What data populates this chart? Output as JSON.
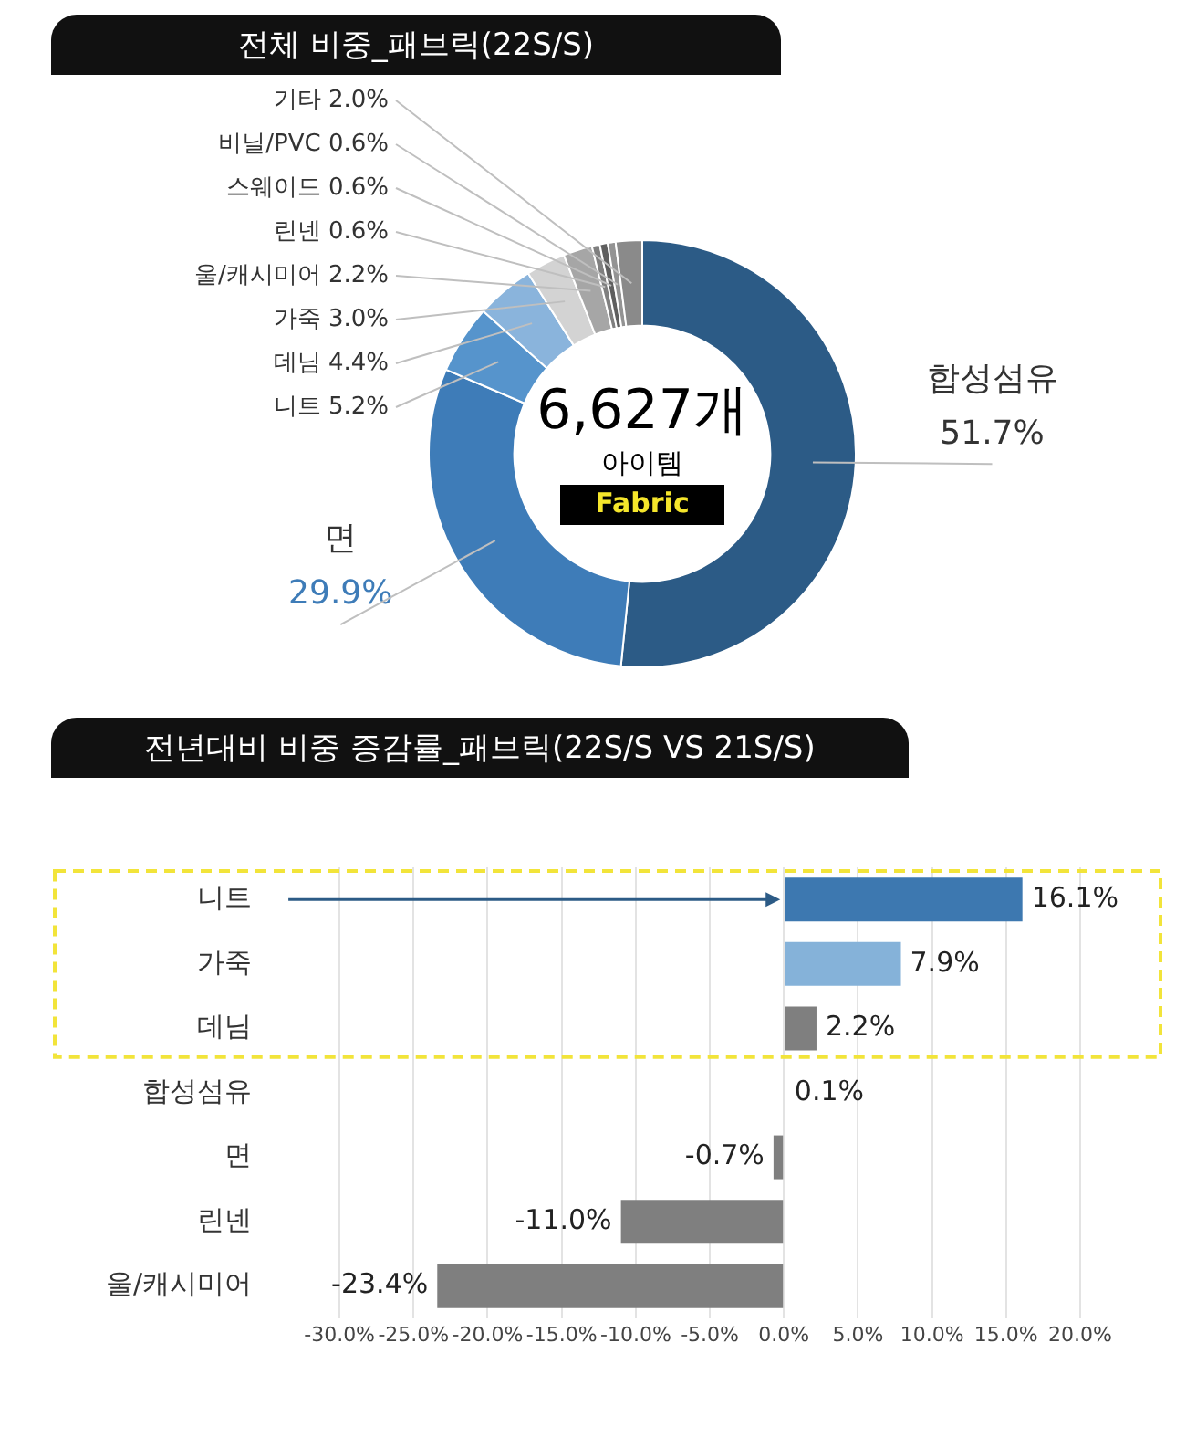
{
  "chart_data": [
    {
      "type": "donut",
      "title": "전체 비중_패브릭(22S/S)",
      "categories": [
        "합성섬유",
        "면",
        "니트",
        "데님",
        "가죽",
        "울/캐시미어",
        "린넨",
        "스웨이드",
        "비닐/PVC",
        "기타"
      ],
      "values": [
        51.7,
        29.9,
        5.2,
        4.4,
        3.0,
        2.2,
        0.6,
        0.6,
        0.6,
        2.0
      ],
      "colors": [
        "#2c5b86",
        "#3e7cb8",
        "#5694cc",
        "#8ab4dc",
        "#d3d3d3",
        "#a6a6a6",
        "#7f7f7f",
        "#5f5f5f",
        "#939393",
        "#8a8a8a"
      ],
      "value_labels": [
        "51.7%",
        "29.9%",
        "5.2%",
        "4.4%",
        "3.0%",
        "2.2%",
        "0.6%",
        "0.6%",
        "0.6%",
        "2.0%"
      ],
      "annotations": [
        "6,627개",
        "아이템",
        "Fabric"
      ]
    },
    {
      "type": "bar",
      "orientation": "horizontal",
      "title": "전년대비 비중 증감률_패브릭(22S/S VS 21S/S)",
      "categories": [
        "니트",
        "가죽",
        "데님",
        "합성섬유",
        "면",
        "린넨",
        "울/캐시미어"
      ],
      "values": [
        16.1,
        7.9,
        2.2,
        0.1,
        -0.7,
        -11.0,
        -23.4
      ],
      "colors": [
        "#3d78b0",
        "#85b2d9",
        "#7f7f7f",
        "#7f7f7f",
        "#7f7f7f",
        "#7f7f7f",
        "#7f7f7f"
      ],
      "value_labels": [
        "16.1%",
        "7.9%",
        "2.2%",
        "0.1%",
        "-0.7%",
        "-11.0%",
        "-23.4%"
      ],
      "xlim": [
        -30,
        20
      ],
      "xticks": [
        {
          "value": -30,
          "label": "-30.0%"
        },
        {
          "value": -25,
          "label": "-25.0%"
        },
        {
          "value": -20,
          "label": "-20.0%"
        },
        {
          "value": -15,
          "label": "-15.0%"
        },
        {
          "value": -10,
          "label": "-10.0%"
        },
        {
          "value": -5,
          "label": "-5.0%"
        },
        {
          "value": 0,
          "label": "0.0%"
        },
        {
          "value": 5,
          "label": "5.0%"
        },
        {
          "value": 10,
          "label": "10.0%"
        },
        {
          "value": 15,
          "label": "15.0%"
        },
        {
          "value": 20,
          "label": "20.0%"
        }
      ],
      "grid": "x"
    }
  ]
}
